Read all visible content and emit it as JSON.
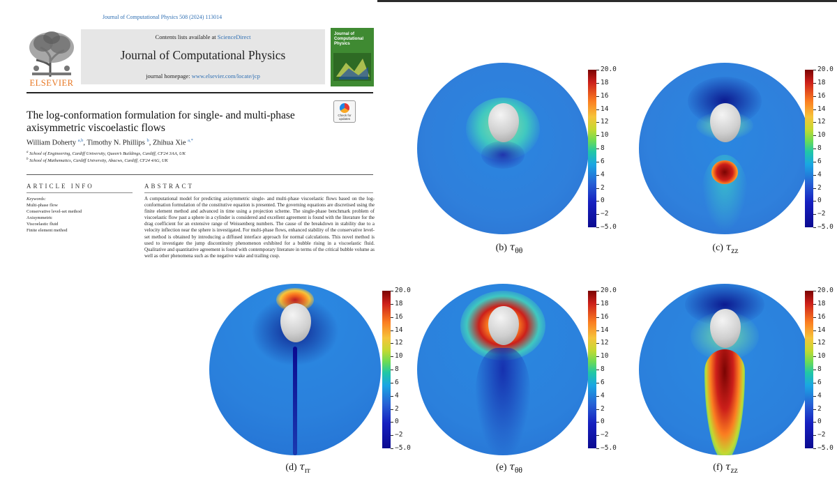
{
  "paper": {
    "citation": "Journal of Computational Physics 508 (2024) 113014",
    "contents_prefix": "Contents lists available at ",
    "contents_link": "ScienceDirect",
    "journal": "Journal of Computational Physics",
    "homepage_prefix": "journal homepage: ",
    "homepage_link": "www.elsevier.com/locate/jcp",
    "publisher": "ELSEVIER",
    "cover_title": "Journal of Computational Physics",
    "check_updates": "Check for updates",
    "title_line1": "The log-conformation formulation for single- and multi-phase",
    "title_line2": "axisymmetric viscoelastic flows",
    "authors": [
      {
        "name": "William Doherty",
        "sup": "a,b"
      },
      {
        "name": "Timothy N. Phillips",
        "sup": "b"
      },
      {
        "name": "Zhihua Xie",
        "sup": "a,*"
      }
    ],
    "affiliations": [
      {
        "sup": "a",
        "text": "School of Engineering, Cardiff University, Queen’s Buildings, Cardiff, CF24 3AA, UK"
      },
      {
        "sup": "b",
        "text": "School of Mathematics, Cardiff University, Abacws, Cardiff, CF24 4AG, UK"
      }
    ],
    "article_info_heading": "ARTICLE INFO",
    "abstract_heading": "ABSTRACT",
    "keywords_label": "Keywords:",
    "keywords": [
      "Multi-phase flow",
      "Conservative level-set method",
      "Axisymmetric",
      "Viscoelastic fluid",
      "Finite element method"
    ],
    "abstract": "A computational model for predicting axisymmetric single- and multi-phase viscoelastic flows based on the log-conformation formulation of the constitutive equation is presented. The governing equations are discretised using the finite element method and advanced in time using a projection scheme. The single-phase benchmark problem of viscoelastic flow past a sphere in a cylinder is considered and excellent agreement is found with the literature for the drag coefficient for an extensive range of Weissenberg numbers. The cause of the breakdown in stability due to a velocity inflection near the sphere is investigated. For multi-phase flows, enhanced stability of the conservative level-set method is obtained by introducing a diffused interface approach for normal calculations. This novel method is used to investigate the jump discontinuity phenomenon exhibited for a bubble rising in a viscoelastic fluid. Qualitative and quantitative agreement is found with contemporary literature in terms of the critical bubble volume as well as other phenomena such as the negative wake and trailing cusp."
  },
  "figure": {
    "colorbar_labels": [
      "20.0",
      "18",
      "16",
      "14",
      "12",
      "10",
      "8",
      "6",
      "4",
      "2",
      "0",
      "−2",
      "−5.0"
    ],
    "panels": [
      {
        "id": "b",
        "caption_prefix": "(b)",
        "symbol": "τ",
        "subscript": "θθ"
      },
      {
        "id": "c",
        "caption_prefix": "(c)",
        "symbol": "τ",
        "subscript": "zz"
      },
      {
        "id": "d",
        "caption_prefix": "(d)",
        "symbol": "τ",
        "subscript": "rr"
      },
      {
        "id": "e",
        "caption_prefix": "(e)",
        "symbol": "τ",
        "subscript": "θθ"
      },
      {
        "id": "f",
        "caption_prefix": "(f)",
        "symbol": "τ",
        "subscript": "zz"
      }
    ],
    "colormap": [
      "#0b0a90",
      "#2761d5",
      "#1aa6e3",
      "#20c7a5",
      "#c3d932",
      "#fb7e21",
      "#cc1f1a",
      "#7a0403"
    ]
  }
}
